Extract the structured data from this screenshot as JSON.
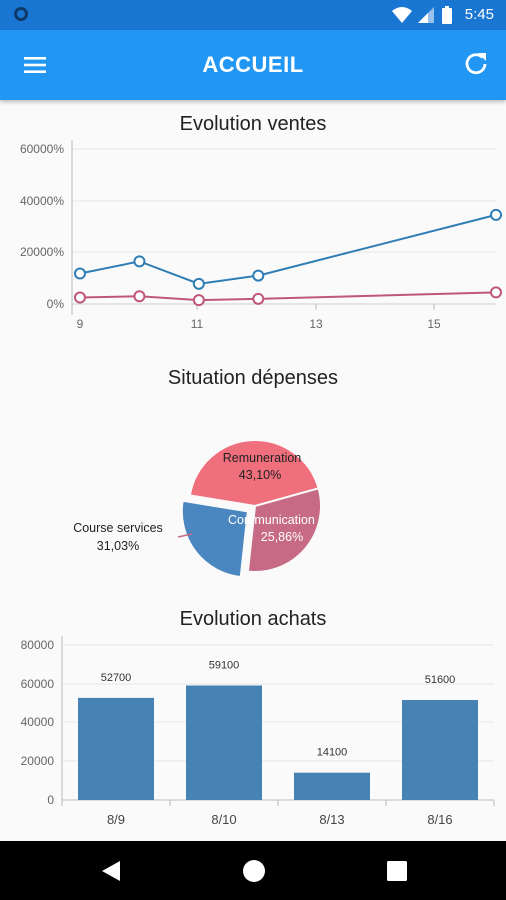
{
  "status_bar": {
    "time": "5:45",
    "icons": [
      "wifi-icon",
      "signal-icon",
      "battery-icon"
    ]
  },
  "app_bar": {
    "title": "ACCUEIL",
    "menu_icon": "menu-icon",
    "refresh_icon": "refresh-icon"
  },
  "colors": {
    "primary": "#2196f3",
    "status": "#1976d2",
    "blue_series": "#2f7db5",
    "pink_series": "#c0577a",
    "bar": "#4682b4",
    "pie_rem": "#f06f7d",
    "pie_course": "#c66a85",
    "pie_comm": "#4a86bf"
  },
  "charts": {
    "line": {
      "title": "Evolution ventes",
      "y_ticks": [
        "0%",
        "20000%",
        "40000%",
        "60000%"
      ],
      "x_ticks": [
        "9",
        "11",
        "13",
        "15"
      ]
    },
    "pie": {
      "title": "Situation dépenses",
      "slices": [
        {
          "label": "Remuneration",
          "pct": "43,10%"
        },
        {
          "label": "Course services",
          "pct": "31,03%"
        },
        {
          "label": "Communication",
          "pct": "25,86%"
        }
      ]
    },
    "bar": {
      "title": "Evolution achats",
      "y_ticks": [
        "0",
        "20000",
        "40000",
        "60000",
        "80000"
      ],
      "bars": [
        {
          "label": "8/9",
          "value": "52700"
        },
        {
          "label": "8/10",
          "value": "59100"
        },
        {
          "label": "8/13",
          "value": "14100"
        },
        {
          "label": "8/16",
          "value": "51600"
        }
      ]
    }
  },
  "chart_data": [
    {
      "type": "line",
      "title": "Evolution ventes",
      "xlabel": "",
      "ylabel": "",
      "ylim": [
        0,
        60000
      ],
      "xlim": [
        9,
        16
      ],
      "series": [
        {
          "x": [
            9,
            10,
            11,
            12,
            16
          ],
          "values": [
            11800,
            16500,
            7800,
            11000,
            34500
          ]
        },
        {
          "x": [
            9,
            10,
            11,
            12,
            16
          ],
          "values": [
            2500,
            3000,
            1500,
            2000,
            4500
          ]
        }
      ]
    },
    {
      "type": "pie",
      "title": "Situation dépenses",
      "categories": [
        "Remuneration",
        "Course services",
        "Communication"
      ],
      "values": [
        43.1,
        31.03,
        25.86
      ]
    },
    {
      "type": "bar",
      "title": "Evolution achats",
      "categories": [
        "8/9",
        "8/10",
        "8/13",
        "8/16"
      ],
      "values": [
        52700,
        59100,
        14100,
        51600
      ],
      "ylim": [
        0,
        80000
      ]
    }
  ],
  "nav_bar": {
    "back": "back-icon",
    "home": "home-icon",
    "recents": "recents-icon"
  }
}
